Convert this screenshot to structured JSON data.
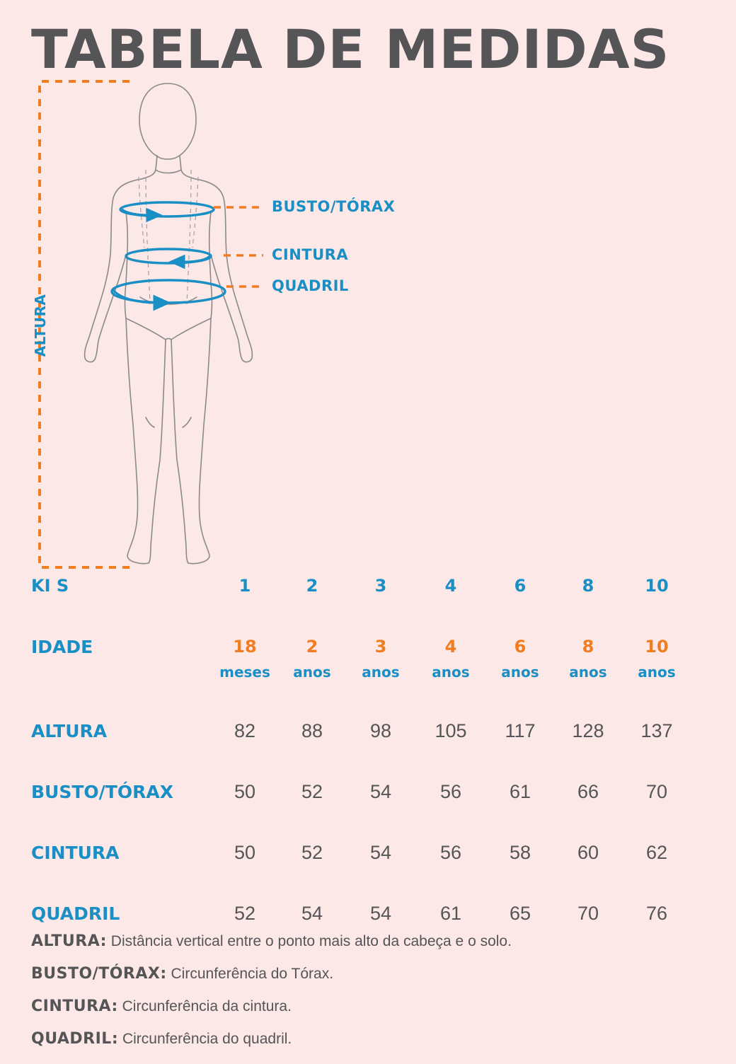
{
  "title": "TABELA DE MEDIDAS",
  "callouts": {
    "busto": "BUSTO/TÓRAX",
    "cintura": "CINTURA",
    "quadril": "QUADRIL",
    "altura": "ALTURA"
  },
  "colors": {
    "background": "#fce8e6",
    "blue": "#1a8fc5",
    "orange": "#f07d22",
    "gray": "#555557"
  },
  "table": {
    "header_label": "KI  S",
    "sizes": [
      "1",
      "2",
      "3",
      "4",
      "6",
      "8",
      "10"
    ],
    "age_label": "IDADE",
    "ages": [
      {
        "num": "18",
        "unit": "meses"
      },
      {
        "num": "2",
        "unit": "anos"
      },
      {
        "num": "3",
        "unit": "anos"
      },
      {
        "num": "4",
        "unit": "anos"
      },
      {
        "num": "6",
        "unit": "anos"
      },
      {
        "num": "8",
        "unit": "anos"
      },
      {
        "num": "10",
        "unit": "anos"
      }
    ],
    "rows": [
      {
        "label": "ALTURA",
        "values": [
          "82",
          "88",
          "98",
          "105",
          "117",
          "128",
          "137"
        ]
      },
      {
        "label": "BUSTO/TÓRAX",
        "values": [
          "50",
          "52",
          "54",
          "56",
          "61",
          "66",
          "70"
        ]
      },
      {
        "label": "CINTURA",
        "values": [
          "50",
          "52",
          "54",
          "56",
          "58",
          "60",
          "62"
        ]
      },
      {
        "label": "QUADRIL",
        "values": [
          "52",
          "54",
          "54",
          "61",
          "65",
          "70",
          "76"
        ]
      }
    ]
  },
  "notes": [
    {
      "term": "ALTURA:",
      "text": " Distância vertical entre o ponto mais alto da cabeça e o solo."
    },
    {
      "term": "BUSTO/TÓRAX:",
      "text": " Circunferência do Tórax."
    },
    {
      "term": "CINTURA:",
      "text": " Circunferência da cintura."
    },
    {
      "term": "QUADRIL:",
      "text": " Circunferência do quadril."
    }
  ]
}
